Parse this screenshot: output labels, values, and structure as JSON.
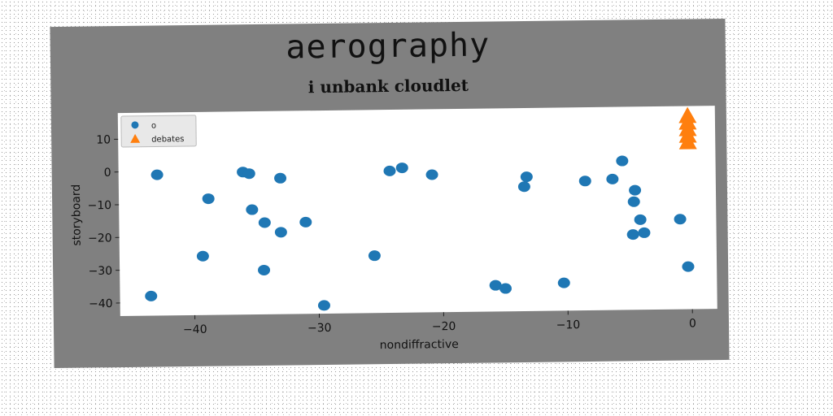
{
  "title": "aerography",
  "chart_data": {
    "type": "scatter",
    "title": "i unbank cloudlet",
    "xlabel": "nondiffractive",
    "ylabel": "storyboard",
    "xlim": [
      -46,
      2
    ],
    "ylim": [
      -44,
      18
    ],
    "xticks": [
      -40,
      -30,
      -20,
      -10,
      0
    ],
    "yticks": [
      10,
      0,
      -10,
      -20,
      -30,
      -40
    ],
    "grid": false,
    "legend_position": "top-left",
    "series": [
      {
        "name": "o",
        "marker": "circle",
        "color": "#1f77b4",
        "points": [
          {
            "x": -43.5,
            "y": -38
          },
          {
            "x": -42.9,
            "y": -1
          },
          {
            "x": -39.3,
            "y": -26
          },
          {
            "x": -38.8,
            "y": -8.5
          },
          {
            "x": -36.0,
            "y": -0.5
          },
          {
            "x": -35.5,
            "y": -1
          },
          {
            "x": -35.3,
            "y": -12
          },
          {
            "x": -34.3,
            "y": -16
          },
          {
            "x": -34.4,
            "y": -30.5
          },
          {
            "x": -33.0,
            "y": -2.5
          },
          {
            "x": -33.0,
            "y": -19
          },
          {
            "x": -31.0,
            "y": -16
          },
          {
            "x": -29.6,
            "y": -41.5
          },
          {
            "x": -25.5,
            "y": -26.5
          },
          {
            "x": -24.2,
            "y": -0.7
          },
          {
            "x": -23.2,
            "y": 0.2
          },
          {
            "x": -20.8,
            "y": -2
          },
          {
            "x": -15.8,
            "y": -36
          },
          {
            "x": -15.0,
            "y": -37
          },
          {
            "x": -13.4,
            "y": -6
          },
          {
            "x": -13.2,
            "y": -3
          },
          {
            "x": -10.3,
            "y": -35.5
          },
          {
            "x": -8.5,
            "y": -4.5
          },
          {
            "x": -6.3,
            "y": -4
          },
          {
            "x": -5.5,
            "y": 1.5
          },
          {
            "x": -4.5,
            "y": -7.5
          },
          {
            "x": -4.6,
            "y": -11
          },
          {
            "x": -4.1,
            "y": -16.5
          },
          {
            "x": -4.7,
            "y": -21
          },
          {
            "x": -3.8,
            "y": -20.5
          },
          {
            "x": -0.9,
            "y": -16.5
          },
          {
            "x": -0.3,
            "y": -31
          }
        ]
      },
      {
        "name": "debates",
        "marker": "triangle",
        "color": "#ff7f0e",
        "points": [
          {
            "x": -0.2,
            "y": 15
          },
          {
            "x": -0.2,
            "y": 13
          },
          {
            "x": -0.2,
            "y": 11
          },
          {
            "x": -0.2,
            "y": 9
          },
          {
            "x": -0.2,
            "y": 7
          }
        ]
      }
    ]
  }
}
